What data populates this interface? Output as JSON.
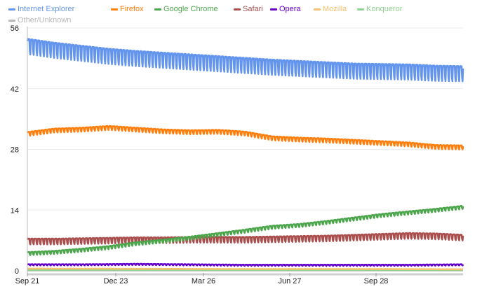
{
  "chart_data": {
    "type": "line",
    "title": "",
    "xlabel": "",
    "ylabel": "",
    "ylim": [
      0,
      56
    ],
    "yticks": [
      0,
      14,
      28,
      42,
      56
    ],
    "x_tick_labels": [
      "Sep 21",
      "Dec 23",
      "Mar 26",
      "Jun 27",
      "Sep 28"
    ],
    "grid": true,
    "legend_position": "top-left",
    "series": [
      {
        "name": "Internet Explorer",
        "color": "#6495ed",
        "points": [
          [
            0,
            53.5
          ],
          [
            8,
            52.6
          ],
          [
            16,
            51.9
          ],
          [
            24,
            51.2
          ],
          [
            32,
            50.7
          ],
          [
            40,
            50.3
          ],
          [
            48,
            49.9
          ],
          [
            56,
            49.5
          ],
          [
            64,
            49.1
          ],
          [
            72,
            48.7
          ],
          [
            80,
            48.4
          ],
          [
            88,
            48.1
          ],
          [
            96,
            47.8
          ],
          [
            104,
            47.7
          ],
          [
            112,
            47.6
          ],
          [
            120,
            47.3
          ],
          [
            128,
            47.2
          ]
        ],
        "weekly_dip": 3.5
      },
      {
        "name": "Firefox",
        "color": "#ff7f0e",
        "points": [
          [
            0,
            32.0
          ],
          [
            8,
            32.8
          ],
          [
            16,
            33.0
          ],
          [
            24,
            33.4
          ],
          [
            32,
            33.0
          ],
          [
            40,
            32.6
          ],
          [
            48,
            32.4
          ],
          [
            56,
            32.5
          ],
          [
            64,
            32.1
          ],
          [
            72,
            31.0
          ],
          [
            80,
            30.7
          ],
          [
            88,
            30.5
          ],
          [
            96,
            30.2
          ],
          [
            104,
            29.9
          ],
          [
            112,
            29.6
          ],
          [
            120,
            29.0
          ],
          [
            128,
            28.9
          ]
        ],
        "weekly_dip": 0.9
      },
      {
        "name": "Google Chrome",
        "color": "#4ca64c",
        "points": [
          [
            0,
            4.3
          ],
          [
            8,
            4.6
          ],
          [
            16,
            5.1
          ],
          [
            24,
            5.7
          ],
          [
            32,
            6.6
          ],
          [
            40,
            7.2
          ],
          [
            48,
            7.9
          ],
          [
            56,
            8.7
          ],
          [
            64,
            9.5
          ],
          [
            72,
            10.4
          ],
          [
            80,
            10.8
          ],
          [
            88,
            11.5
          ],
          [
            96,
            12.3
          ],
          [
            104,
            13.1
          ],
          [
            112,
            13.7
          ],
          [
            120,
            14.3
          ],
          [
            128,
            15.0
          ]
        ],
        "weekly_dip": 0.7
      },
      {
        "name": "Safari",
        "color": "#aa4e4e",
        "points": [
          [
            0,
            7.4
          ],
          [
            8,
            7.4
          ],
          [
            16,
            7.5
          ],
          [
            24,
            7.6
          ],
          [
            32,
            7.7
          ],
          [
            40,
            7.7
          ],
          [
            48,
            7.8
          ],
          [
            56,
            7.8
          ],
          [
            64,
            7.8
          ],
          [
            72,
            7.9
          ],
          [
            80,
            8.0
          ],
          [
            88,
            8.1
          ],
          [
            96,
            8.3
          ],
          [
            104,
            8.5
          ],
          [
            112,
            8.7
          ],
          [
            120,
            8.6
          ],
          [
            128,
            8.3
          ]
        ],
        "weekly_dip": 1.3
      },
      {
        "name": "Opera",
        "color": "#6600cc",
        "points": [
          [
            0,
            1.5
          ],
          [
            16,
            1.5
          ],
          [
            32,
            1.6
          ],
          [
            48,
            1.5
          ],
          [
            64,
            1.4
          ],
          [
            80,
            1.4
          ],
          [
            96,
            1.4
          ],
          [
            112,
            1.4
          ],
          [
            128,
            1.5
          ]
        ],
        "weekly_dip": 0.25
      },
      {
        "name": "Mozilla",
        "color": "#f5c06f",
        "points": [
          [
            0,
            0.5
          ],
          [
            32,
            0.45
          ],
          [
            64,
            0.4
          ],
          [
            96,
            0.4
          ],
          [
            128,
            0.35
          ]
        ],
        "weekly_dip": 0
      },
      {
        "name": "Konqueror",
        "color": "#8fd18f",
        "points": [
          [
            0,
            0.2
          ],
          [
            64,
            0.2
          ],
          [
            128,
            0.2
          ]
        ],
        "weekly_dip": 0
      },
      {
        "name": "Other/Unknown",
        "color": "#b8b8b8",
        "points": [
          [
            0,
            0.1
          ],
          [
            64,
            0.1
          ],
          [
            128,
            0.1
          ]
        ],
        "weekly_dip": 0
      }
    ]
  }
}
